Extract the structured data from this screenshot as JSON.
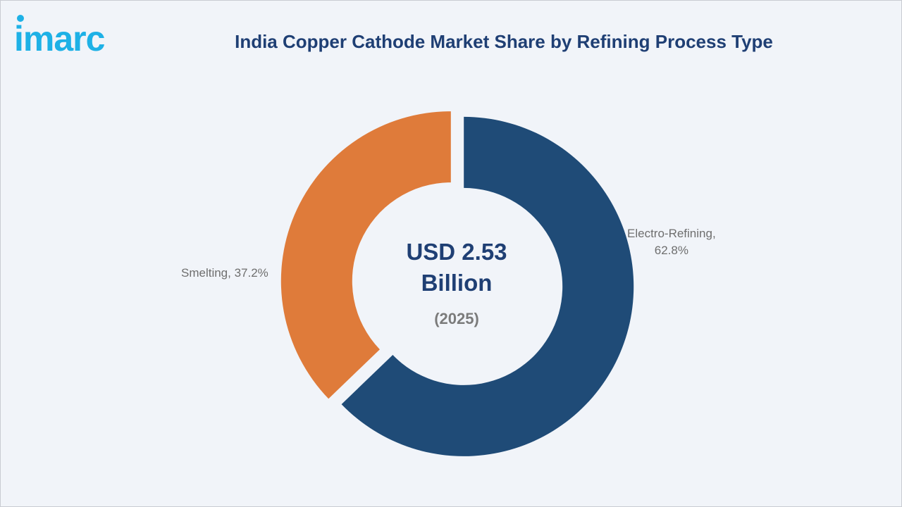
{
  "logo": {
    "text": "imarc"
  },
  "chart_data": {
    "type": "pie",
    "title": "India Copper Cathode Market Share by Refining Process Type",
    "center_label": {
      "line1": "USD 2.53",
      "line2": "Billion",
      "year": "(2025)"
    },
    "slices": [
      {
        "name": "Electro-Refining",
        "value": 62.8,
        "label_line1": "Electro-Refining,",
        "label_line2": "62.8%",
        "color": "#1f4b77"
      },
      {
        "name": "Smelting",
        "value": 37.2,
        "label": "Smelting, 37.2%",
        "color": "#df7b3a"
      }
    ],
    "legend": "none",
    "grid": false
  }
}
